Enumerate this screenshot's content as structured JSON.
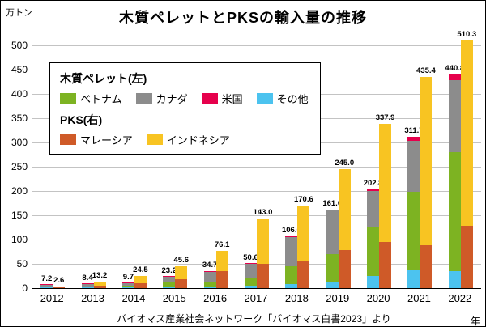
{
  "title": "木質ペレットとPKSの輸入量の推移",
  "source": "バイオマス産業社会ネットワーク「バイオマス白書2023」より",
  "chart_data": {
    "type": "bar",
    "subtype": "grouped-stacked",
    "title": "木質ペレットとPKSの輸入量の推移",
    "y_unit": "万トン",
    "x_unit": "年",
    "ylim": [
      0,
      500
    ],
    "y_ticks": [
      0,
      50,
      100,
      150,
      200,
      250,
      300,
      350,
      400,
      450,
      500
    ],
    "grid": true,
    "categories": [
      "2012",
      "2013",
      "2014",
      "2015",
      "2016",
      "2017",
      "2018",
      "2019",
      "2020",
      "2021",
      "2022"
    ],
    "groups": [
      {
        "name": "木質ペレット(左)",
        "totals": [
          7.2,
          8.4,
          9.7,
          23.2,
          34.7,
          50.6,
          106.0,
          161.0,
          202.8,
          311.7,
          440.8
        ],
        "series": [
          {
            "name": "その他",
            "color": "#4cc3ef",
            "values": [
              1.0,
              1.2,
              1.5,
              3.0,
              4.0,
              5.0,
              8.0,
              12.0,
              25.0,
              38.0,
              35.0
            ]
          },
          {
            "name": "ベトナム",
            "color": "#7db322",
            "values": [
              1.2,
              2.0,
              3.0,
              8.0,
              10.0,
              15.0,
              37.0,
              58.0,
              100.0,
              160.0,
              245.0
            ]
          },
          {
            "name": "カナダ",
            "color": "#8c8c8c",
            "values": [
              4.8,
              5.0,
              5.0,
              12.0,
              20.0,
              30.0,
              60.0,
              90.0,
              75.0,
              106.0,
              148.0
            ]
          },
          {
            "name": "米国",
            "color": "#e6004c",
            "values": [
              0.2,
              0.2,
              0.2,
              0.2,
              0.7,
              0.6,
              1.0,
              1.0,
              2.8,
              7.7,
              12.8
            ]
          }
        ]
      },
      {
        "name": "PKS(右)",
        "totals": [
          2.6,
          13.2,
          24.5,
          45.6,
          76.1,
          143.0,
          170.6,
          245.0,
          337.9,
          435.4,
          510.3
        ],
        "series": [
          {
            "name": "マレーシア",
            "color": "#cf5a28",
            "values": [
              1.0,
              5.0,
              10.0,
              18.0,
              35.0,
              50.0,
              57.0,
              78.0,
              95.0,
              88.0,
              128.0
            ]
          },
          {
            "name": "インドネシア",
            "color": "#f8c422",
            "values": [
              1.6,
              8.2,
              14.5,
              27.6,
              41.1,
              93.0,
              113.6,
              167.0,
              242.9,
              347.4,
              382.3
            ]
          }
        ]
      }
    ],
    "legend": {
      "position": "top-left-inside",
      "pellet_header": "木質ペレット(左)",
      "pellet_items": [
        {
          "label": "ベトナム",
          "color": "#7db322"
        },
        {
          "label": "カナダ",
          "color": "#8c8c8c"
        },
        {
          "label": "米国",
          "color": "#e6004c"
        },
        {
          "label": "その他",
          "color": "#4cc3ef"
        }
      ],
      "pks_header": "PKS(右)",
      "pks_items": [
        {
          "label": "マレーシア",
          "color": "#cf5a28"
        },
        {
          "label": "インドネシア",
          "color": "#f8c422"
        }
      ]
    }
  }
}
